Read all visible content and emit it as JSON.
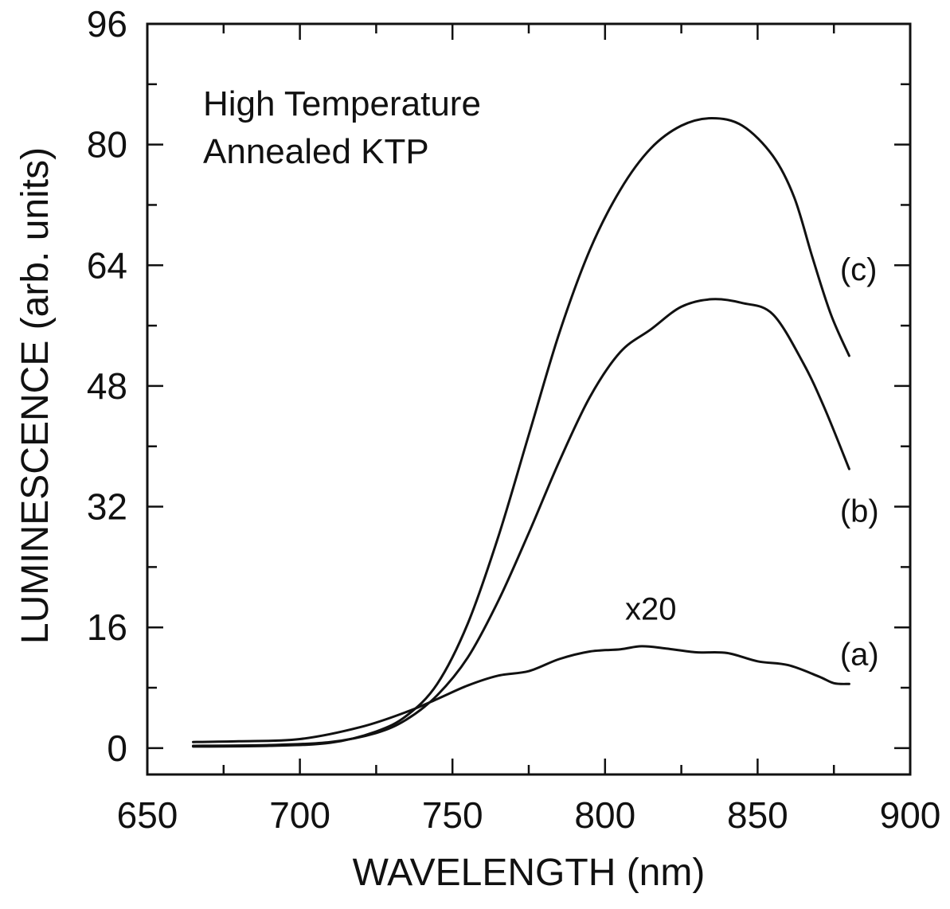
{
  "chart_data": {
    "type": "line",
    "title": "High Temperature",
    "subtitle": "Annealed KTP",
    "xlabel": "WAVELENGTH (nm)",
    "ylabel": "LUMINESCENCE (arb. units)",
    "xlim": [
      650,
      900
    ],
    "ylim": [
      -3.5,
      96
    ],
    "xticks": [
      650,
      700,
      750,
      800,
      850,
      900
    ],
    "yticks": [
      0,
      16,
      32,
      48,
      64,
      80,
      96
    ],
    "grid": false,
    "legend": "none",
    "series": [
      {
        "name": "(a)",
        "x": [
          665,
          680,
          700,
          720,
          735,
          745,
          755,
          765,
          775,
          785,
          795,
          805,
          812,
          820,
          830,
          840,
          850,
          860,
          870,
          875,
          880
        ],
        "y": [
          0.8,
          0.9,
          1.2,
          2.8,
          4.8,
          6.5,
          8.3,
          9.6,
          10.2,
          11.8,
          12.8,
          13.1,
          13.5,
          13.2,
          12.7,
          12.6,
          11.5,
          11.0,
          9.5,
          8.6,
          8.5
        ]
      },
      {
        "name": "(b)",
        "x": [
          665,
          690,
          710,
          725,
          735,
          745,
          755,
          765,
          775,
          785,
          795,
          805,
          815,
          825,
          835,
          845,
          855,
          865,
          872,
          880
        ],
        "y": [
          0.3,
          0.4,
          0.8,
          2.0,
          3.8,
          7.0,
          12.0,
          19.5,
          28.5,
          38.0,
          46.5,
          52.5,
          55.5,
          58.5,
          59.5,
          59.0,
          57.5,
          51.0,
          45.0,
          37.0
        ]
      },
      {
        "name": "(c)",
        "x": [
          665,
          690,
          710,
          725,
          735,
          745,
          755,
          765,
          775,
          785,
          795,
          805,
          815,
          825,
          835,
          845,
          855,
          862,
          868,
          874,
          880
        ],
        "y": [
          0.2,
          0.3,
          0.7,
          2.2,
          4.3,
          8.5,
          16.5,
          28.0,
          41.5,
          55.0,
          66.0,
          74.0,
          79.5,
          82.5,
          83.5,
          82.5,
          78.5,
          73.0,
          65.0,
          57.5,
          52.0
        ]
      }
    ],
    "annotations": [
      {
        "text": "x20",
        "x": 815,
        "y": 18.5
      },
      {
        "text": "(a)",
        "x": 877,
        "y": 12.5
      },
      {
        "text": "(b)",
        "x": 877,
        "y": 31.5
      },
      {
        "text": "(c)",
        "x": 877,
        "y": 63.5
      }
    ]
  }
}
